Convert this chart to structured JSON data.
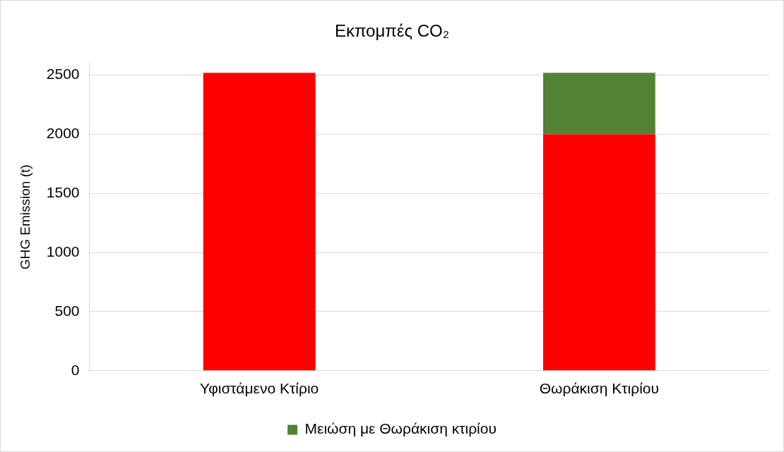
{
  "chart_data": {
    "type": "bar",
    "title": "Εκπομπές CO₂",
    "ylabel": "GHG Emission (t)",
    "categories": [
      "Υφιστάμενο Κτίριο",
      "Θωράκιση Κτιρίου"
    ],
    "stacked": true,
    "series": [
      {
        "color": "#ff0000",
        "values": [
          2520,
          2000
        ]
      },
      {
        "name": "Μειώση με Θωράκιση κτιρίου",
        "color": "#548235",
        "values": [
          null,
          520
        ]
      }
    ],
    "ylim": [
      0,
      2600
    ],
    "yticks": [
      0,
      500,
      1000,
      1500,
      2000,
      2500
    ],
    "grid": "y",
    "legend": "bottom"
  }
}
